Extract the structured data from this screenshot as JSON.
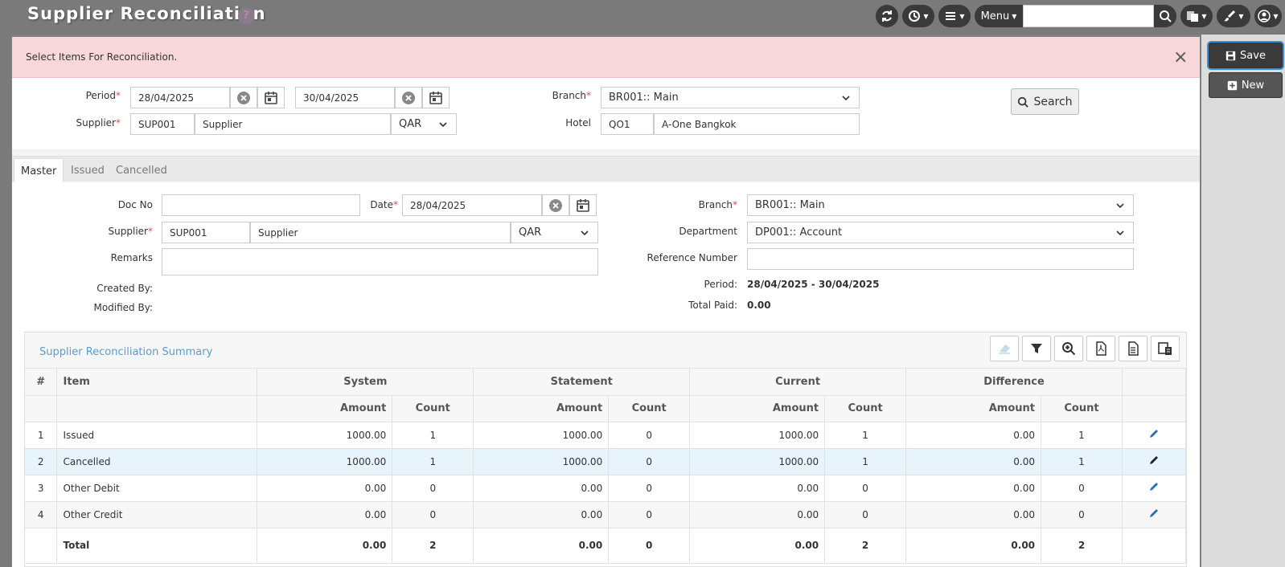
{
  "app": {
    "title": "Supplier Reconciliation",
    "help_glyph": "?"
  },
  "topbar": {
    "menu_label": "Menu",
    "search_value": ""
  },
  "actions": {
    "save_label": "Save",
    "new_label": "New"
  },
  "alert": {
    "message": "Select Items For Reconciliation.",
    "close_glyph": "×"
  },
  "filter": {
    "period_label": "Period",
    "period_from": "28/04/2025",
    "period_to": "30/04/2025",
    "supplier_label": "Supplier",
    "supplier_code": "SUP001",
    "supplier_name": "Supplier",
    "currency": "QAR",
    "branch_label": "Branch",
    "branch_value": "BR001:: Main",
    "hotel_label": "Hotel",
    "hotel_code": "QO1",
    "hotel_name": "A-One Bangkok",
    "search_label": "Search"
  },
  "tabs": [
    {
      "label": "Master"
    },
    {
      "label": "Issued"
    },
    {
      "label": "Cancelled"
    }
  ],
  "form": {
    "doc_no_label": "Doc No",
    "doc_no_value": "",
    "date_label": "Date",
    "date_value": "28/04/2025",
    "supplier_label": "Supplier",
    "supplier_code": "SUP001",
    "supplier_name": "Supplier",
    "currency": "QAR",
    "remarks_label": "Remarks",
    "remarks_value": "",
    "created_by_label": "Created By:",
    "created_by_value": "",
    "modified_by_label": "Modified By:",
    "modified_by_value": "",
    "branch_label": "Branch",
    "branch_value": "BR001:: Main",
    "department_label": "Department",
    "department_value": "DP001:: Account",
    "reference_label": "Reference Number",
    "reference_value": "",
    "period_label": "Period:",
    "period_value": "28/04/2025 - 30/04/2025",
    "total_paid_label": "Total Paid:",
    "total_paid_value": "0.00"
  },
  "grid": {
    "title": "Supplier Reconciliation Summary",
    "headers": {
      "num": "#",
      "item": "Item",
      "system": "System",
      "statement": "Statement",
      "current": "Current",
      "difference": "Difference",
      "amount": "Amount",
      "count": "Count"
    },
    "rows": [
      {
        "num": "1",
        "item": "Issued",
        "sys_amt": "1000.00",
        "sys_cnt": "1",
        "st_amt": "1000.00",
        "st_cnt": "0",
        "cur_amt": "1000.00",
        "cur_cnt": "1",
        "diff_amt": "0.00",
        "diff_cnt": "1"
      },
      {
        "num": "2",
        "item": "Cancelled",
        "sys_amt": "1000.00",
        "sys_cnt": "1",
        "st_amt": "1000.00",
        "st_cnt": "0",
        "cur_amt": "1000.00",
        "cur_cnt": "1",
        "diff_amt": "0.00",
        "diff_cnt": "1"
      },
      {
        "num": "3",
        "item": "Other Debit",
        "sys_amt": "0.00",
        "sys_cnt": "0",
        "st_amt": "0.00",
        "st_cnt": "0",
        "cur_amt": "0.00",
        "cur_cnt": "0",
        "diff_amt": "0.00",
        "diff_cnt": "0"
      },
      {
        "num": "4",
        "item": "Other Credit",
        "sys_amt": "0.00",
        "sys_cnt": "0",
        "st_amt": "0.00",
        "st_cnt": "0",
        "cur_amt": "0.00",
        "cur_cnt": "0",
        "diff_amt": "0.00",
        "diff_cnt": "0"
      }
    ],
    "total": {
      "label": "Total",
      "sys_amt": "0.00",
      "sys_cnt": "2",
      "st_amt": "0.00",
      "st_cnt": "0",
      "cur_amt": "0.00",
      "cur_cnt": "2",
      "diff_amt": "0.00",
      "diff_cnt": "2"
    }
  },
  "colors": {
    "accent": "#5b9bd5",
    "alert_bg": "#f8d7da",
    "required": "#d9534f",
    "edit_icon": "#2a6fb5"
  }
}
